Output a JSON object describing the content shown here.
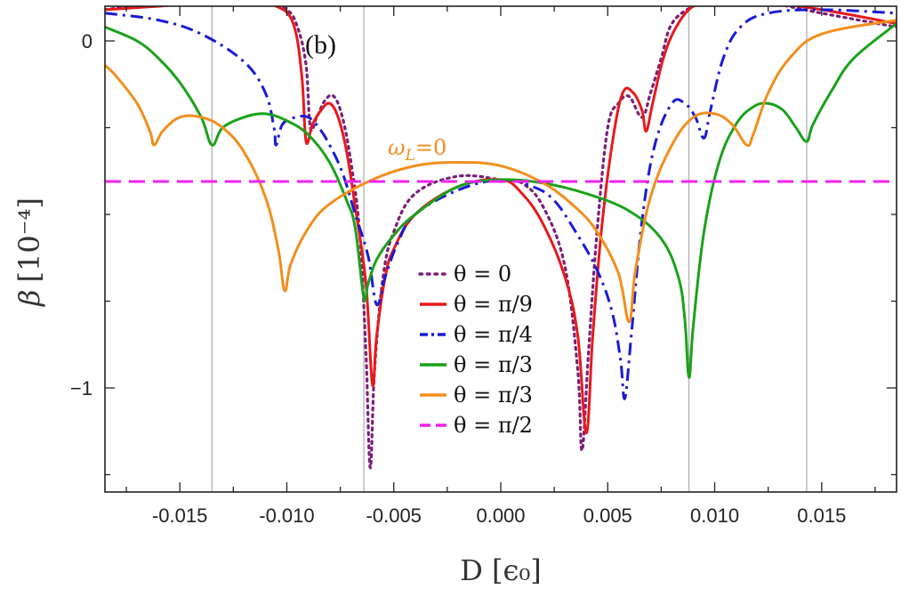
{
  "chart_data": {
    "type": "line",
    "panel_label": "(b)",
    "xlabel": "D [ϵ₀]",
    "ylabel_symbol": "β",
    "ylabel_unit": "[10⁻⁴]",
    "xlim": [
      -0.0185,
      0.0185
    ],
    "ylim": [
      -1.3,
      0.1
    ],
    "xticks": [
      -0.015,
      -0.01,
      -0.005,
      0.0,
      0.005,
      0.01,
      0.015
    ],
    "xtick_labels": [
      "-0.015",
      "-0.010",
      "-0.005",
      "0.000",
      "0.005",
      "0.010",
      "0.015"
    ],
    "yticks": [
      0,
      -1
    ],
    "ytick_labels": [
      "0",
      "−1"
    ],
    "vertical_lines": [
      -0.0135,
      -0.0064,
      0.0088,
      0.0143
    ],
    "annotation": {
      "text_main": "ω",
      "text_sub": "L",
      "text_rest": "=0",
      "x": -0.0052,
      "y": -0.27,
      "color": "#f28e1c"
    },
    "legend_position": "center-bottom",
    "series": [
      {
        "name": "θ = 0",
        "color": "#7b1f7a",
        "style": "dotted",
        "points": [
          [
            -0.0185,
            0.09
          ],
          [
            -0.016,
            0.11
          ],
          [
            -0.014,
            0.115
          ],
          [
            -0.012,
            0.115
          ],
          [
            -0.011,
            0.11
          ],
          [
            -0.01,
            0.09
          ],
          [
            -0.0095,
            0.04
          ],
          [
            -0.0091,
            -0.07
          ],
          [
            -0.0089,
            -0.25
          ],
          [
            -0.0086,
            -0.22
          ],
          [
            -0.0082,
            -0.17
          ],
          [
            -0.0078,
            -0.16
          ],
          [
            -0.0074,
            -0.22
          ],
          [
            -0.007,
            -0.35
          ],
          [
            -0.0066,
            -0.55
          ],
          [
            -0.0063,
            -0.9
          ],
          [
            -0.0061,
            -1.23
          ],
          [
            -0.0059,
            -0.95
          ],
          [
            -0.0055,
            -0.68
          ],
          [
            -0.005,
            -0.55
          ],
          [
            -0.004,
            -0.44
          ],
          [
            -0.002,
            -0.39
          ],
          [
            0.0,
            -0.4
          ],
          [
            0.001,
            -0.41
          ],
          [
            0.002,
            -0.48
          ],
          [
            0.003,
            -0.65
          ],
          [
            0.0036,
            -0.95
          ],
          [
            0.0038,
            -1.18
          ],
          [
            0.0041,
            -0.9
          ],
          [
            0.0045,
            -0.55
          ],
          [
            0.005,
            -0.25
          ],
          [
            0.0055,
            -0.18
          ],
          [
            0.006,
            -0.16
          ],
          [
            0.0066,
            -0.22
          ],
          [
            0.007,
            -0.15
          ],
          [
            0.0075,
            -0.05
          ],
          [
            0.008,
            0.05
          ],
          [
            0.009,
            0.1
          ],
          [
            0.01,
            0.115
          ],
          [
            0.012,
            0.115
          ],
          [
            0.015,
            0.08
          ],
          [
            0.0185,
            0.04
          ]
        ]
      },
      {
        "name": "θ = π/9",
        "color": "#e8191c",
        "style": "solid",
        "points": [
          [
            -0.0185,
            0.09
          ],
          [
            -0.016,
            0.1
          ],
          [
            -0.014,
            0.11
          ],
          [
            -0.012,
            0.11
          ],
          [
            -0.0105,
            0.1
          ],
          [
            -0.0097,
            0.05
          ],
          [
            -0.0093,
            -0.1
          ],
          [
            -0.0091,
            -0.29
          ],
          [
            -0.0088,
            -0.24
          ],
          [
            -0.0084,
            -0.2
          ],
          [
            -0.008,
            -0.18
          ],
          [
            -0.0076,
            -0.22
          ],
          [
            -0.0072,
            -0.32
          ],
          [
            -0.0068,
            -0.48
          ],
          [
            -0.0063,
            -0.7
          ],
          [
            -0.006,
            -0.99
          ],
          [
            -0.0058,
            -0.85
          ],
          [
            -0.0054,
            -0.68
          ],
          [
            -0.005,
            -0.6
          ],
          [
            -0.004,
            -0.5
          ],
          [
            -0.002,
            -0.42
          ],
          [
            0.0,
            -0.4
          ],
          [
            0.001,
            -0.44
          ],
          [
            0.002,
            -0.53
          ],
          [
            0.003,
            -0.68
          ],
          [
            0.0036,
            -0.85
          ],
          [
            0.004,
            -1.13
          ],
          [
            0.0043,
            -0.85
          ],
          [
            0.0047,
            -0.55
          ],
          [
            0.0052,
            -0.3
          ],
          [
            0.0057,
            -0.15
          ],
          [
            0.0062,
            -0.15
          ],
          [
            0.0066,
            -0.2
          ],
          [
            0.0068,
            -0.26
          ],
          [
            0.0071,
            -0.18
          ],
          [
            0.0076,
            -0.05
          ],
          [
            0.0082,
            0.04
          ],
          [
            0.009,
            0.1
          ],
          [
            0.01,
            0.11
          ],
          [
            0.012,
            0.115
          ],
          [
            0.015,
            0.09
          ],
          [
            0.0185,
            0.05
          ]
        ]
      },
      {
        "name": "θ = π/4",
        "color": "#1a1ad6",
        "style": "dashdot",
        "points": [
          [
            -0.0185,
            0.08
          ],
          [
            -0.016,
            0.06
          ],
          [
            -0.014,
            0.02
          ],
          [
            -0.012,
            -0.06
          ],
          [
            -0.011,
            -0.15
          ],
          [
            -0.0106,
            -0.25
          ],
          [
            -0.0105,
            -0.3
          ],
          [
            -0.0102,
            -0.24
          ],
          [
            -0.0096,
            -0.22
          ],
          [
            -0.009,
            -0.22
          ],
          [
            -0.0085,
            -0.25
          ],
          [
            -0.008,
            -0.3
          ],
          [
            -0.0074,
            -0.38
          ],
          [
            -0.0068,
            -0.5
          ],
          [
            -0.0062,
            -0.62
          ],
          [
            -0.0058,
            -0.76
          ],
          [
            -0.0054,
            -0.68
          ],
          [
            -0.0048,
            -0.58
          ],
          [
            -0.004,
            -0.5
          ],
          [
            -0.002,
            -0.43
          ],
          [
            0.0,
            -0.4
          ],
          [
            0.0015,
            -0.42
          ],
          [
            0.0025,
            -0.46
          ],
          [
            0.0035,
            -0.55
          ],
          [
            0.0045,
            -0.66
          ],
          [
            0.0052,
            -0.78
          ],
          [
            0.0056,
            -0.92
          ],
          [
            0.0058,
            -1.03
          ],
          [
            0.0061,
            -0.85
          ],
          [
            0.0066,
            -0.52
          ],
          [
            0.0072,
            -0.3
          ],
          [
            0.008,
            -0.18
          ],
          [
            0.0086,
            -0.18
          ],
          [
            0.0091,
            -0.22
          ],
          [
            0.0095,
            -0.28
          ],
          [
            0.0098,
            -0.2
          ],
          [
            0.0104,
            -0.05
          ],
          [
            0.0112,
            0.04
          ],
          [
            0.0125,
            0.08
          ],
          [
            0.015,
            0.09
          ],
          [
            0.0185,
            0.08
          ]
        ]
      },
      {
        "name": "θ = π/3",
        "color": "#1aa11a",
        "style": "solid",
        "points": [
          [
            -0.0185,
            0.04
          ],
          [
            -0.017,
            0.0
          ],
          [
            -0.016,
            -0.05
          ],
          [
            -0.015,
            -0.12
          ],
          [
            -0.014,
            -0.22
          ],
          [
            -0.0135,
            -0.3
          ],
          [
            -0.013,
            -0.25
          ],
          [
            -0.012,
            -0.22
          ],
          [
            -0.011,
            -0.21
          ],
          [
            -0.01,
            -0.23
          ],
          [
            -0.009,
            -0.27
          ],
          [
            -0.008,
            -0.35
          ],
          [
            -0.0072,
            -0.46
          ],
          [
            -0.0068,
            -0.54
          ],
          [
            -0.0064,
            -0.74
          ],
          [
            -0.0062,
            -0.7
          ],
          [
            -0.0058,
            -0.63
          ],
          [
            -0.005,
            -0.56
          ],
          [
            -0.004,
            -0.5
          ],
          [
            -0.002,
            -0.42
          ],
          [
            0.0,
            -0.4
          ],
          [
            0.002,
            -0.41
          ],
          [
            0.004,
            -0.44
          ],
          [
            0.006,
            -0.49
          ],
          [
            0.0075,
            -0.57
          ],
          [
            0.0083,
            -0.68
          ],
          [
            0.0086,
            -0.8
          ],
          [
            0.0088,
            -0.97
          ],
          [
            0.009,
            -0.82
          ],
          [
            0.0095,
            -0.55
          ],
          [
            0.0102,
            -0.35
          ],
          [
            0.011,
            -0.24
          ],
          [
            0.0118,
            -0.19
          ],
          [
            0.0125,
            -0.18
          ],
          [
            0.0132,
            -0.2
          ],
          [
            0.0138,
            -0.25
          ],
          [
            0.0143,
            -0.29
          ],
          [
            0.0146,
            -0.24
          ],
          [
            0.0155,
            -0.14
          ],
          [
            0.0165,
            -0.05
          ],
          [
            0.0185,
            0.05
          ]
        ]
      },
      {
        "name": "θ = π/3",
        "color": "#f28e1c",
        "style": "solid",
        "points": [
          [
            -0.0185,
            -0.07
          ],
          [
            -0.018,
            -0.1
          ],
          [
            -0.017,
            -0.18
          ],
          [
            -0.0164,
            -0.26
          ],
          [
            -0.0162,
            -0.3
          ],
          [
            -0.0158,
            -0.26
          ],
          [
            -0.015,
            -0.22
          ],
          [
            -0.014,
            -0.22
          ],
          [
            -0.013,
            -0.25
          ],
          [
            -0.012,
            -0.32
          ],
          [
            -0.011,
            -0.45
          ],
          [
            -0.0104,
            -0.6
          ],
          [
            -0.0101,
            -0.72
          ],
          [
            -0.0098,
            -0.64
          ],
          [
            -0.009,
            -0.54
          ],
          [
            -0.008,
            -0.47
          ],
          [
            -0.006,
            -0.4
          ],
          [
            -0.004,
            -0.36
          ],
          [
            -0.002,
            -0.35
          ],
          [
            0.0,
            -0.36
          ],
          [
            0.002,
            -0.41
          ],
          [
            0.0035,
            -0.48
          ],
          [
            0.0045,
            -0.55
          ],
          [
            0.0055,
            -0.67
          ],
          [
            0.006,
            -0.81
          ],
          [
            0.0063,
            -0.66
          ],
          [
            0.007,
            -0.45
          ],
          [
            0.008,
            -0.3
          ],
          [
            0.009,
            -0.22
          ],
          [
            0.01,
            -0.21
          ],
          [
            0.0108,
            -0.24
          ],
          [
            0.0115,
            -0.3
          ],
          [
            0.0118,
            -0.27
          ],
          [
            0.0125,
            -0.15
          ],
          [
            0.0135,
            -0.05
          ],
          [
            0.015,
            0.02
          ],
          [
            0.0185,
            0.06
          ]
        ]
      },
      {
        "name": "θ = π/2",
        "color": "#f020f0",
        "style": "dashed",
        "points": [
          [
            -0.0185,
            -0.405
          ],
          [
            0.0185,
            -0.405
          ]
        ]
      }
    ]
  }
}
